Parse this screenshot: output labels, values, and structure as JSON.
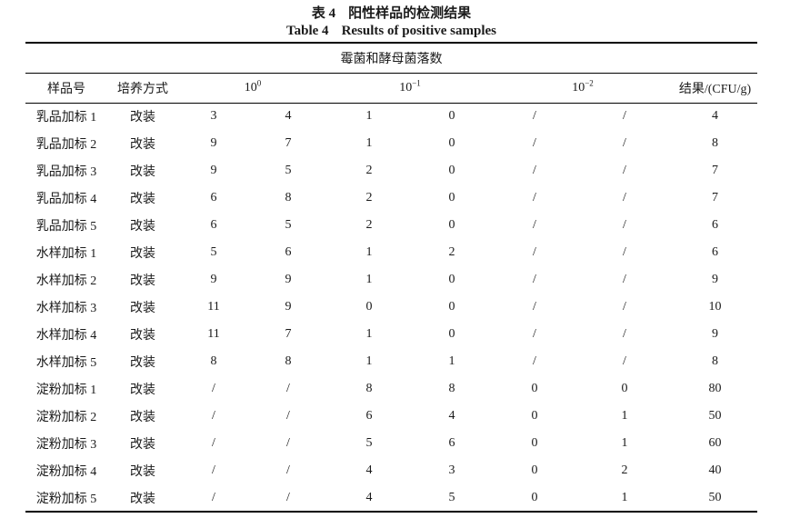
{
  "page": {
    "background": "#ffffff",
    "text_color": "#1a1a1a",
    "rule_color": "#000000"
  },
  "caption": {
    "zh_label": "表 4",
    "zh_text": "阳性样品的检测结果",
    "en_label": "Table 4",
    "en_text": "Results of positive samples"
  },
  "table": {
    "span_header": "霉菌和酵母菌落数",
    "columns": {
      "sample": "样品号",
      "method": "培养方式",
      "dilutions": [
        {
          "base": "10",
          "exp": "0"
        },
        {
          "base": "10",
          "exp": "−1"
        },
        {
          "base": "10",
          "exp": "−2"
        }
      ],
      "result": "结果/(CFU/g)"
    },
    "rows": [
      {
        "sample": "乳品加标 1",
        "method": "改装",
        "counts": [
          "3",
          "4",
          "1",
          "0",
          "/",
          "/"
        ],
        "result": "4"
      },
      {
        "sample": "乳品加标 2",
        "method": "改装",
        "counts": [
          "9",
          "7",
          "1",
          "0",
          "/",
          "/"
        ],
        "result": "8"
      },
      {
        "sample": "乳品加标 3",
        "method": "改装",
        "counts": [
          "9",
          "5",
          "2",
          "0",
          "/",
          "/"
        ],
        "result": "7"
      },
      {
        "sample": "乳品加标 4",
        "method": "改装",
        "counts": [
          "6",
          "8",
          "2",
          "0",
          "/",
          "/"
        ],
        "result": "7"
      },
      {
        "sample": "乳品加标 5",
        "method": "改装",
        "counts": [
          "6",
          "5",
          "2",
          "0",
          "/",
          "/"
        ],
        "result": "6"
      },
      {
        "sample": "水样加标 1",
        "method": "改装",
        "counts": [
          "5",
          "6",
          "1",
          "2",
          "/",
          "/"
        ],
        "result": "6"
      },
      {
        "sample": "水样加标 2",
        "method": "改装",
        "counts": [
          "9",
          "9",
          "1",
          "0",
          "/",
          "/"
        ],
        "result": "9"
      },
      {
        "sample": "水样加标 3",
        "method": "改装",
        "counts": [
          "11",
          "9",
          "0",
          "0",
          "/",
          "/"
        ],
        "result": "10"
      },
      {
        "sample": "水样加标 4",
        "method": "改装",
        "counts": [
          "11",
          "7",
          "1",
          "0",
          "/",
          "/"
        ],
        "result": "9"
      },
      {
        "sample": "水样加标 5",
        "method": "改装",
        "counts": [
          "8",
          "8",
          "1",
          "1",
          "/",
          "/"
        ],
        "result": "8"
      },
      {
        "sample": "淀粉加标 1",
        "method": "改装",
        "counts": [
          "/",
          "/",
          "8",
          "8",
          "0",
          "0"
        ],
        "result": "80"
      },
      {
        "sample": "淀粉加标 2",
        "method": "改装",
        "counts": [
          "/",
          "/",
          "6",
          "4",
          "0",
          "1"
        ],
        "result": "50"
      },
      {
        "sample": "淀粉加标 3",
        "method": "改装",
        "counts": [
          "/",
          "/",
          "5",
          "6",
          "0",
          "1"
        ],
        "result": "60"
      },
      {
        "sample": "淀粉加标 4",
        "method": "改装",
        "counts": [
          "/",
          "/",
          "4",
          "3",
          "0",
          "2"
        ],
        "result": "40"
      },
      {
        "sample": "淀粉加标 5",
        "method": "改装",
        "counts": [
          "/",
          "/",
          "4",
          "5",
          "0",
          "1"
        ],
        "result": "50"
      }
    ]
  }
}
